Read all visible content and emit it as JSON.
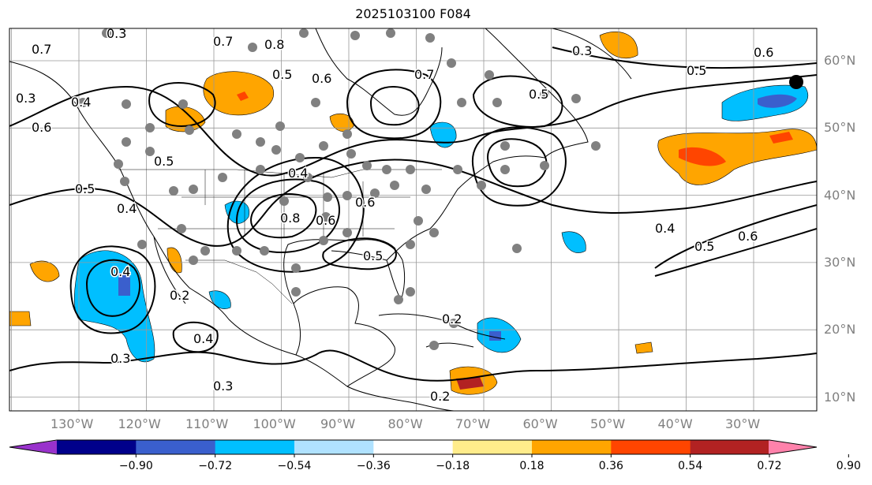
{
  "title": "2025103100 F084",
  "lon_labels": [
    "130°W",
    "120°W",
    "110°W",
    "100°W",
    "90°W",
    "80°W",
    "70°W",
    "60°W",
    "50°W",
    "40°W",
    "30°W"
  ],
  "lat_labels": [
    "60°N",
    "50°N",
    "40°N",
    "30°N",
    "20°N",
    "10°N"
  ],
  "colorbar": {
    "ticks": [
      "−0.90",
      "−0.72",
      "−0.54",
      "−0.36",
      "−0.18",
      "0.18",
      "0.36",
      "0.54",
      "0.72",
      "0.90"
    ],
    "colors": [
      "#9932cc",
      "#00008b",
      "#3a5fcd",
      "#00bfff",
      "#b0e2ff",
      "#ffffff",
      "#ffec8b",
      "#ffa500",
      "#ff4500",
      "#b22222",
      "#ff82ab"
    ]
  },
  "contour_labels": [
    "0.3",
    "0.7",
    "0.8",
    "0.7",
    "0.5",
    "0.6",
    "0.7",
    "0.5",
    "0.3",
    "0.6",
    "0.5",
    "0.6",
    "0.4",
    "0.3",
    "0.5",
    "0.5",
    "0.4",
    "0.4",
    "0.6",
    "0.8",
    "0.6",
    "0.2",
    "0.3",
    "0.4",
    "0.3",
    "0.2",
    "0.2",
    "0.4",
    "0.5",
    "0.4",
    "0.5",
    "0.6"
  ]
}
